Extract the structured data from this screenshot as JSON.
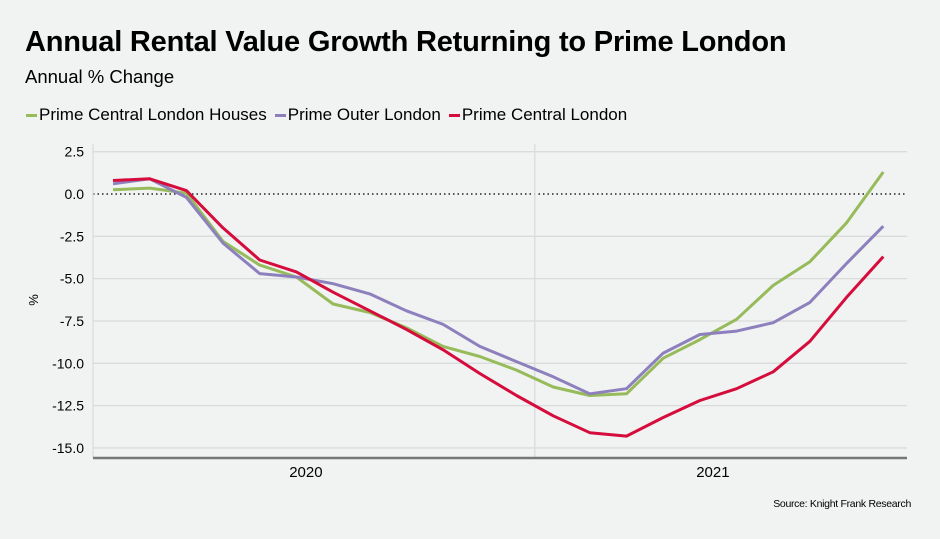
{
  "title": "Annual Rental Value Growth Returning to Prime London",
  "subtitle": "Annual % Change",
  "source": "Source: Knight Frank Research",
  "colors": {
    "background": "#f0f3f2",
    "grid": "#d9dcdb",
    "axis": "#777777",
    "green": "#97bb5b",
    "purple": "#8d80bd",
    "red": "#d50c3c"
  },
  "chart_data": {
    "type": "line",
    "title": "Annual Rental Value Growth Returning to Prime London",
    "subtitle": "Annual % Change",
    "xlabel": "",
    "ylabel": "%",
    "ylim": [
      -15.6,
      3.0
    ],
    "yticks": [
      2.5,
      0.0,
      -2.5,
      -5.0,
      -7.5,
      -10.0,
      -12.5,
      -15.0
    ],
    "ytick_labels": [
      "2.5",
      "0.0",
      "-2.5",
      "-5.0",
      "-7.5",
      "-10.0",
      "-12.5",
      "-15.0"
    ],
    "x_periods": 22,
    "x_group_labels": [
      {
        "label": "2020",
        "start_index": 0,
        "end_index": 11
      },
      {
        "label": "2021",
        "start_index": 12,
        "end_index": 21
      }
    ],
    "zero_line": "dotted",
    "grid": true,
    "legend_position": "top-left",
    "series": [
      {
        "name": "Prime Central London Houses",
        "color": "#97bb5b",
        "values": [
          0.25,
          0.35,
          0.05,
          -2.8,
          -4.2,
          -4.9,
          -6.5,
          -7.0,
          -7.9,
          -9.0,
          -9.6,
          -10.4,
          -11.4,
          -11.9,
          -11.8,
          -9.7,
          -8.6,
          -7.4,
          -5.4,
          -4.0,
          -1.7,
          1.3
        ]
      },
      {
        "name": "Prime Outer London",
        "color": "#8d80bd",
        "values": [
          0.6,
          0.9,
          -0.2,
          -2.9,
          -4.7,
          -4.9,
          -5.3,
          -5.9,
          -6.9,
          -7.7,
          -9.0,
          -9.9,
          -10.8,
          -11.8,
          -11.5,
          -9.4,
          -8.3,
          -8.1,
          -7.6,
          -6.4,
          -4.1,
          -1.9
        ]
      },
      {
        "name": "Prime Central London",
        "color": "#d50c3c",
        "values": [
          0.8,
          0.9,
          0.2,
          -2.0,
          -3.9,
          -4.6,
          -5.8,
          -6.9,
          -8.0,
          -9.2,
          -10.6,
          -11.9,
          -13.1,
          -14.1,
          -14.3,
          -13.2,
          -12.2,
          -11.5,
          -10.5,
          -8.7,
          -6.1,
          -3.7
        ]
      }
    ]
  }
}
